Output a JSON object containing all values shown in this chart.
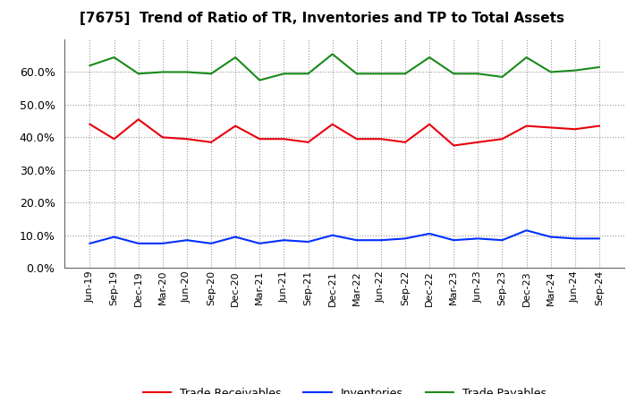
{
  "title": "[7675]  Trend of Ratio of TR, Inventories and TP to Total Assets",
  "x_labels": [
    "Jun-19",
    "Sep-19",
    "Dec-19",
    "Mar-20",
    "Jun-20",
    "Sep-20",
    "Dec-20",
    "Mar-21",
    "Jun-21",
    "Sep-21",
    "Dec-21",
    "Mar-22",
    "Jun-22",
    "Sep-22",
    "Dec-22",
    "Mar-23",
    "Jun-23",
    "Sep-23",
    "Dec-23",
    "Mar-24",
    "Jun-24",
    "Sep-24"
  ],
  "trade_receivables": [
    0.44,
    0.395,
    0.455,
    0.4,
    0.395,
    0.385,
    0.435,
    0.395,
    0.395,
    0.385,
    0.44,
    0.395,
    0.395,
    0.385,
    0.44,
    0.375,
    0.385,
    0.395,
    0.435,
    0.43,
    0.425,
    0.435
  ],
  "inventories": [
    0.075,
    0.095,
    0.075,
    0.075,
    0.085,
    0.075,
    0.095,
    0.075,
    0.085,
    0.08,
    0.1,
    0.085,
    0.085,
    0.09,
    0.105,
    0.085,
    0.09,
    0.085,
    0.115,
    0.095,
    0.09,
    0.09
  ],
  "trade_payables": [
    0.62,
    0.645,
    0.595,
    0.6,
    0.6,
    0.595,
    0.645,
    0.575,
    0.595,
    0.595,
    0.655,
    0.595,
    0.595,
    0.595,
    0.645,
    0.595,
    0.595,
    0.585,
    0.645,
    0.6,
    0.605,
    0.615
  ],
  "tr_color": "#e8000d",
  "inv_color": "#0030ff",
  "tp_color": "#1a8a1a",
  "ylim": [
    0.0,
    0.7
  ],
  "yticks": [
    0.0,
    0.1,
    0.2,
    0.3,
    0.4,
    0.5,
    0.6
  ],
  "background_color": "#ffffff",
  "grid_color": "#999999",
  "legend_labels": [
    "Trade Receivables",
    "Inventories",
    "Trade Payables"
  ]
}
